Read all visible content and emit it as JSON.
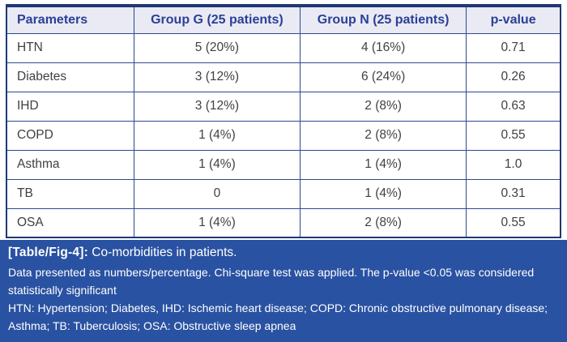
{
  "colors": {
    "caption_bg": "#2a52a2",
    "header_bg": "#e9eaf3",
    "header_text": "#2b3f97",
    "border_outer": "#1d3973",
    "border_inner": "#2a4a8f",
    "body_text": "#414042",
    "caption_text": "#ffffff"
  },
  "table": {
    "columns": [
      "Parameters",
      "Group G (25 patients)",
      "Group N (25 patients)",
      "p-value"
    ],
    "rows": [
      [
        "HTN",
        "5 (20%)",
        "4 (16%)",
        "0.71"
      ],
      [
        "Diabetes",
        "3 (12%)",
        "6 (24%)",
        "0.26"
      ],
      [
        "IHD",
        "3 (12%)",
        "2 (8%)",
        "0.63"
      ],
      [
        "COPD",
        "1 (4%)",
        "2 (8%)",
        "0.55"
      ],
      [
        "Asthma",
        "1 (4%)",
        "1 (4%)",
        "1.0"
      ],
      [
        "TB",
        "0",
        "1 (4%)",
        "0.31"
      ],
      [
        "OSA",
        "1 (4%)",
        "2 (8%)",
        "0.55"
      ]
    ]
  },
  "caption": {
    "label": "[Table/Fig-4]:",
    "title": "Co-morbidities in patients.",
    "note": "Data presented as numbers/percentage. Chi-square test was applied. The p-value <0.05 was considered statistically significant",
    "abbreviations": "HTN: Hypertension; Diabetes, IHD: Ischemic heart disease; COPD: Chronic obstructive pulmonary disease; Asthma; TB: Tuberculosis; OSA: Obstructive sleep apnea"
  }
}
